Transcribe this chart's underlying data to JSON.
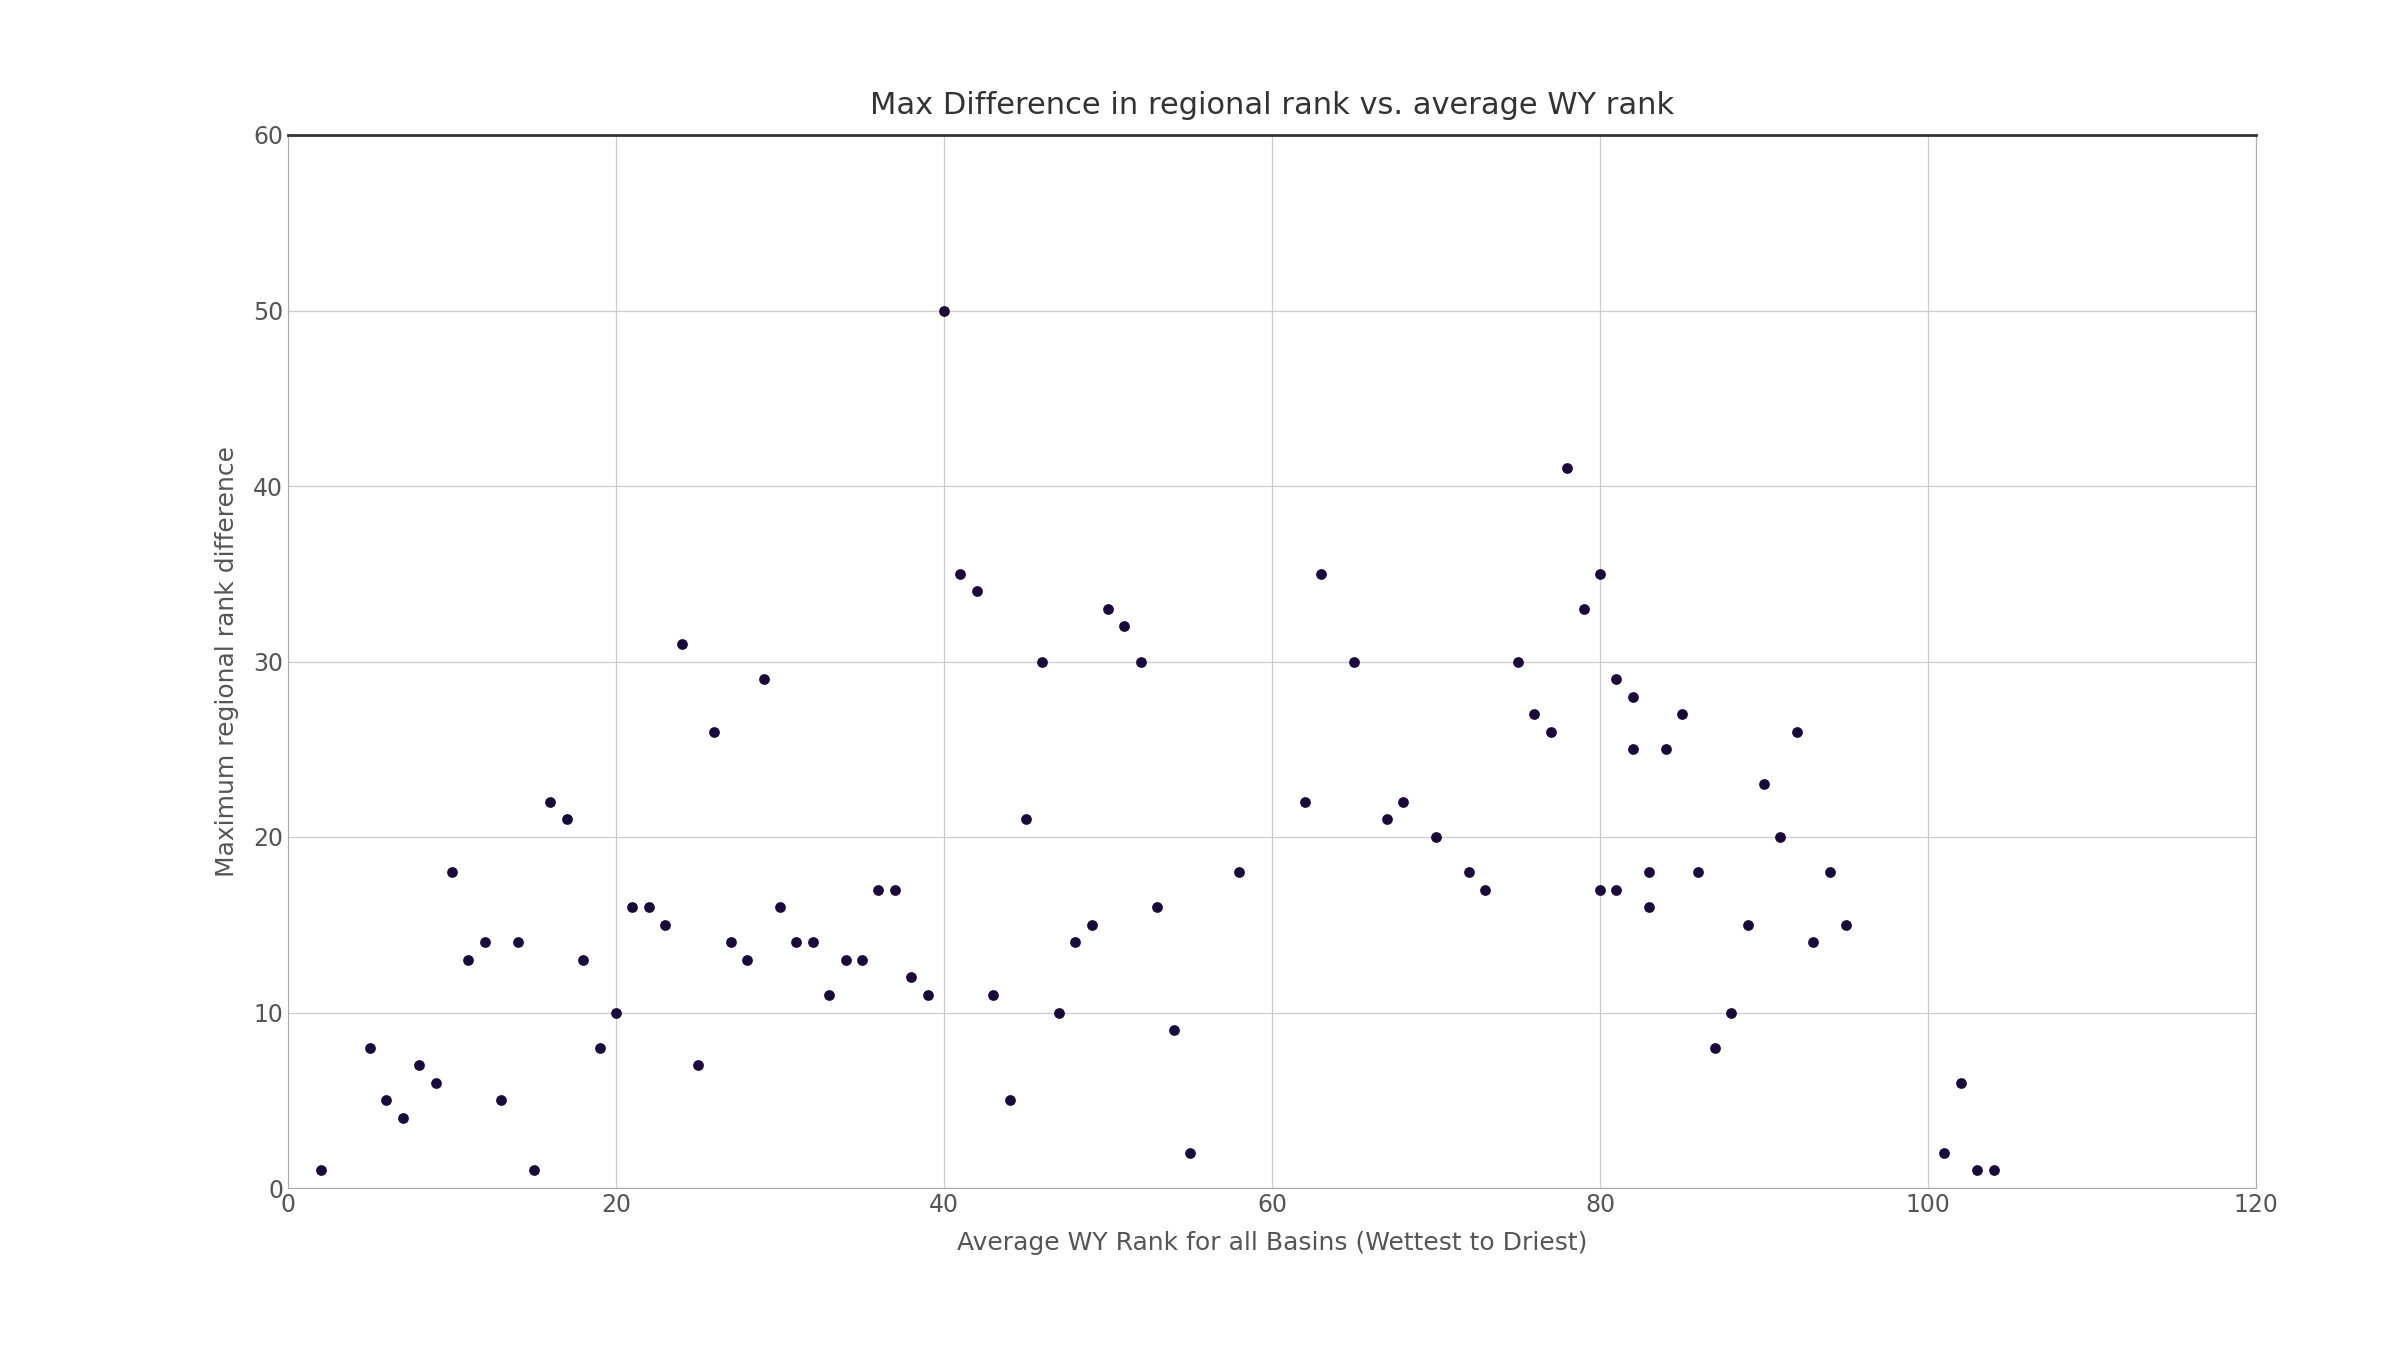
{
  "title": "Max Difference in regional rank vs. average WY rank",
  "xlabel": "Average WY Rank for all Basins (Wettest to Driest)",
  "ylabel": "Maximum regional rank difference",
  "xlim": [
    0,
    120
  ],
  "ylim": [
    0,
    60
  ],
  "xticks": [
    0,
    20,
    40,
    60,
    80,
    100,
    120
  ],
  "yticks": [
    0,
    10,
    20,
    30,
    40,
    50,
    60
  ],
  "dot_color": "#1a0a3c",
  "dot_size": 60,
  "bg_color": "#f0f0f0",
  "plot_bg": "#ffffff",
  "x": [
    2,
    5,
    6,
    7,
    8,
    9,
    10,
    11,
    12,
    13,
    14,
    15,
    16,
    17,
    18,
    19,
    20,
    21,
    22,
    23,
    24,
    25,
    26,
    27,
    28,
    29,
    30,
    31,
    32,
    33,
    34,
    35,
    36,
    37,
    38,
    39,
    40,
    41,
    42,
    43,
    44,
    45,
    46,
    47,
    48,
    49,
    50,
    51,
    52,
    53,
    54,
    55,
    58,
    62,
    63,
    65,
    67,
    68,
    70,
    72,
    73,
    75,
    76,
    77,
    78,
    79,
    80,
    80,
    81,
    81,
    82,
    82,
    83,
    83,
    84,
    85,
    86,
    87,
    88,
    89,
    90,
    91,
    92,
    93,
    94,
    95,
    101,
    102,
    103,
    104
  ],
  "y": [
    1,
    8,
    5,
    4,
    7,
    6,
    18,
    13,
    14,
    5,
    14,
    1,
    22,
    21,
    13,
    8,
    10,
    16,
    16,
    15,
    31,
    7,
    26,
    14,
    13,
    29,
    16,
    14,
    14,
    11,
    13,
    13,
    17,
    17,
    12,
    11,
    50,
    35,
    34,
    11,
    5,
    21,
    30,
    10,
    14,
    15,
    33,
    32,
    30,
    16,
    9,
    2,
    18,
    22,
    35,
    30,
    21,
    22,
    20,
    18,
    17,
    30,
    27,
    26,
    41,
    33,
    35,
    17,
    29,
    17,
    28,
    25,
    18,
    16,
    25,
    27,
    18,
    8,
    10,
    15,
    23,
    20,
    26,
    14,
    18,
    15,
    2,
    6,
    1,
    1
  ],
  "title_fontsize": 22,
  "label_fontsize": 18,
  "tick_fontsize": 17
}
